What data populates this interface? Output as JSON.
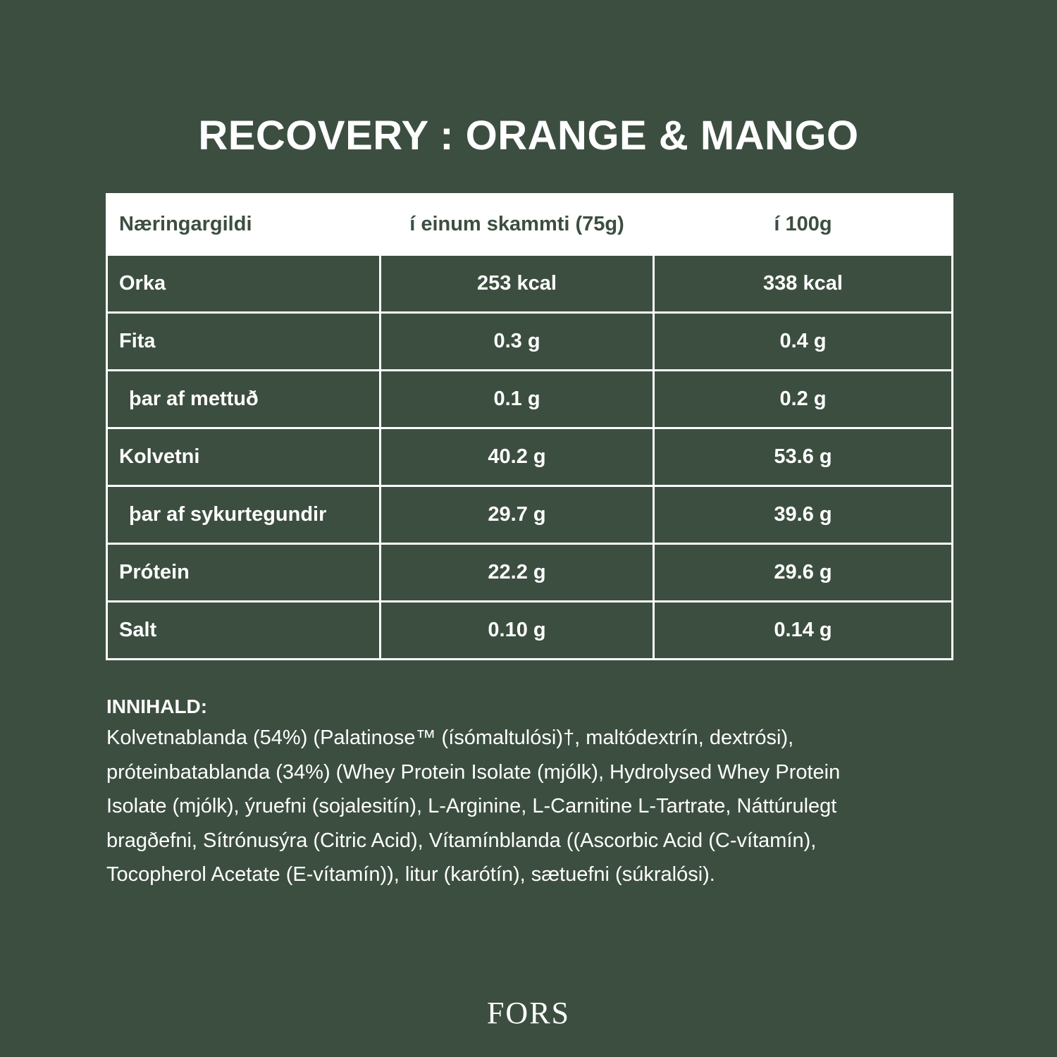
{
  "title": "RECOVERY : ORANGE & MANGO",
  "table": {
    "headers": [
      "Næringargildi",
      "í einum skammti (75g)",
      "í 100g"
    ],
    "rows": [
      {
        "label": "Orka",
        "serving": "253 kcal",
        "per100": "338 kcal",
        "sub": false
      },
      {
        "label": "Fita",
        "serving": "0.3 g",
        "per100": "0.4 g",
        "sub": false
      },
      {
        "label": "þar af mettuð",
        "serving": "0.1 g",
        "per100": "0.2 g",
        "sub": true
      },
      {
        "label": "Kolvetni",
        "serving": "40.2 g",
        "per100": "53.6 g",
        "sub": false
      },
      {
        "label": "þar af sykurtegundir",
        "serving": "29.7 g",
        "per100": "39.6 g",
        "sub": true
      },
      {
        "label": "Prótein",
        "serving": "22.2 g",
        "per100": "29.6 g",
        "sub": false
      },
      {
        "label": "Salt",
        "serving": "0.10 g",
        "per100": "0.14 g",
        "sub": false
      }
    ]
  },
  "ingredients": {
    "heading": "INNIHALD:",
    "lines": [
      "Kolvetnablanda (54%) (Palatinose™ (ísómaltulósi)†, maltódextrín, dextrósi),",
      "próteinbatablanda (34%) (Whey Protein Isolate (mjólk), Hydrolysed Whey Protein",
      "Isolate (mjólk), ýruefni (sojalesitín), L-Arginine, L-Carnitine L-Tartrate, Náttúrulegt",
      "bragðefni, Sítrónusýra (Citric Acid), Vítamínblanda ((Ascorbic Acid (C-vítamín),",
      "Tocopherol Acetate (E-vítamín)), litur (karótín), sætuefni (súkralósi)."
    ]
  },
  "brand": "FORS",
  "colors": {
    "background": "#3c4e40",
    "foreground": "#ffffff"
  }
}
